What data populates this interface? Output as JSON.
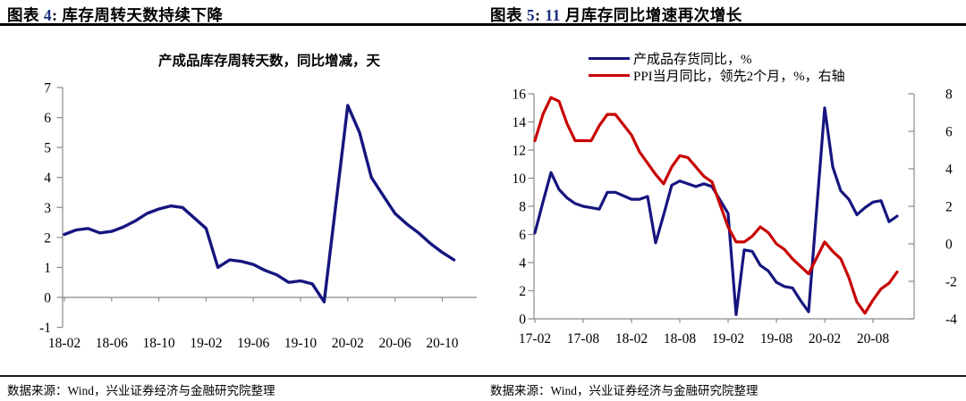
{
  "headers": {
    "left": {
      "prefix": "图表",
      "number": "4",
      "sep": ":",
      "title": "库存周转天数持续下降"
    },
    "right": {
      "prefix": "图表",
      "number": "5",
      "sep": ":",
      "highlight": "11",
      "title": "月库存同比增速再次增长"
    }
  },
  "colors": {
    "navy": "#15157f",
    "red": "#c80202",
    "axis": "#8a8a8a",
    "figure_number_blue": "#1c2f80"
  },
  "footer": {
    "left_source": "数据来源：Wind，兴业证券经济与金融研究院整理",
    "right_source": "数据来源：Wind，兴业证券经济与金融研究院整理"
  },
  "chart_data": [
    {
      "type": "line",
      "title": "产成品库存周转天数，同比增减，天",
      "categories": [
        "18-02",
        "18-03",
        "18-04",
        "18-05",
        "18-06",
        "18-07",
        "18-08",
        "18-09",
        "18-10",
        "18-11",
        "18-12",
        "19-02",
        "19-03",
        "19-04",
        "19-05",
        "19-06",
        "19-07",
        "19-08",
        "19-09",
        "19-10",
        "19-11",
        "19-12",
        "20-02",
        "20-03",
        "20-04",
        "20-05",
        "20-06",
        "20-07",
        "20-08",
        "20-09",
        "20-10",
        "20-11"
      ],
      "series": [
        {
          "name": "产成品库存周转天数同比增减",
          "color": "#15157f",
          "values": [
            2.1,
            2.25,
            2.3,
            2.15,
            2.2,
            2.35,
            2.55,
            2.8,
            2.95,
            3.05,
            3.0,
            2.3,
            1.0,
            1.25,
            1.2,
            1.1,
            0.9,
            0.75,
            0.5,
            0.55,
            0.45,
            -0.15,
            6.4,
            5.5,
            4.0,
            3.4,
            2.8,
            2.45,
            2.15,
            1.8,
            1.5,
            1.25
          ]
        }
      ],
      "ylim": [
        -1,
        7
      ],
      "ytick_step": 1,
      "xtick_labels": [
        "18-02",
        "18-06",
        "18-10",
        "19-02",
        "19-06",
        "19-10",
        "20-02",
        "20-06",
        "20-10"
      ],
      "grid": false,
      "legend": "none"
    },
    {
      "type": "line",
      "dual_axis": true,
      "categories": [
        "17-02",
        "17-03",
        "17-04",
        "17-05",
        "17-06",
        "17-07",
        "17-08",
        "17-09",
        "17-10",
        "17-11",
        "17-12",
        "18-02",
        "18-03",
        "18-04",
        "18-05",
        "18-06",
        "18-07",
        "18-08",
        "18-09",
        "18-10",
        "18-11",
        "18-12",
        "19-02",
        "19-03",
        "19-04",
        "19-05",
        "19-06",
        "19-07",
        "19-08",
        "19-09",
        "19-10",
        "19-11",
        "19-12",
        "20-02",
        "20-03",
        "20-04",
        "20-05",
        "20-06",
        "20-07",
        "20-08",
        "20-09",
        "20-10",
        "20-11"
      ],
      "series": [
        {
          "name": "产成品存货同比，%",
          "axis": "left",
          "color": "#15157f",
          "values": [
            6.1,
            8.3,
            10.4,
            9.2,
            8.6,
            8.2,
            8.0,
            7.9,
            7.8,
            9.0,
            9.0,
            8.5,
            8.5,
            8.7,
            5.4,
            7.4,
            9.5,
            9.8,
            9.6,
            9.4,
            9.6,
            9.4,
            7.5,
            0.3,
            4.9,
            4.8,
            3.8,
            3.4,
            2.6,
            2.3,
            2.2,
            1.3,
            0.5,
            15.0,
            10.8,
            9.1,
            8.5,
            7.4,
            7.9,
            8.3,
            8.4,
            6.9,
            7.3
          ]
        },
        {
          "name": "PPI当月同比，领先2个月，%，右轴",
          "axis": "right",
          "color": "#c80202",
          "values": [
            5.5,
            6.9,
            7.8,
            7.6,
            6.4,
            5.5,
            5.5,
            5.5,
            6.3,
            6.9,
            6.9,
            5.8,
            4.9,
            4.3,
            3.7,
            3.2,
            4.1,
            4.7,
            4.6,
            4.1,
            3.6,
            3.3,
            0.9,
            0.1,
            0.1,
            0.4,
            0.9,
            0.6,
            0.0,
            -0.3,
            -0.8,
            -1.2,
            -1.6,
            0.1,
            -0.4,
            -0.8,
            -1.8,
            -3.1,
            -3.7,
            -3.0,
            -2.4,
            -2.1,
            -1.5
          ]
        }
      ],
      "left_ylim": [
        0,
        16
      ],
      "left_ytick_step": 2,
      "right_ylim": [
        -4,
        8
      ],
      "right_ytick_step": 2,
      "xtick_labels": [
        "17-02",
        "17-08",
        "18-02",
        "18-08",
        "19-02",
        "19-08",
        "20-02",
        "20-08"
      ],
      "grid": false,
      "legend_position": "top-left"
    }
  ]
}
